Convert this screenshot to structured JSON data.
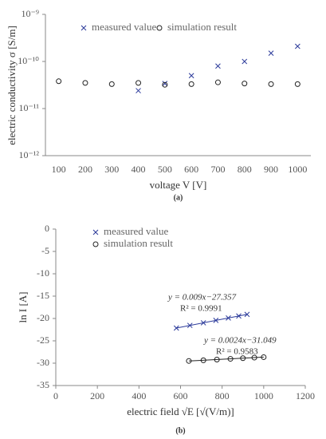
{
  "chart_data": [
    {
      "type": "scatter",
      "subtitle": "(a)",
      "x_label": "voltage V [V]",
      "y_label": "electric conductivity σ [S/m]",
      "log_y": true,
      "grid": false,
      "legend": "top",
      "categories": [
        "100",
        "200",
        "300",
        "400",
        "500",
        "600",
        "700",
        "800",
        "900",
        "1000"
      ],
      "ylim": [
        1e-12,
        1e-09
      ],
      "yticks": [
        {
          "value": 1e-12,
          "label": "10⁻¹²"
        },
        {
          "value": 1e-11,
          "label": "10⁻¹¹"
        },
        {
          "value": 1e-10,
          "label": "10⁻¹⁰"
        },
        {
          "value": 1e-09,
          "label": "10⁻⁹"
        }
      ],
      "series": [
        {
          "name": "measured value",
          "color": "#2b3a9a",
          "marker": "x",
          "values": [
            null,
            null,
            null,
            2.4e-11,
            3.4e-11,
            5e-11,
            8e-11,
            1e-10,
            1.5e-10,
            2.1e-10
          ]
        },
        {
          "name": "simulation result",
          "color": "#222222",
          "marker": "o",
          "values": [
            3.8e-11,
            3.5e-11,
            3.3e-11,
            3.5e-11,
            3.2e-11,
            3.3e-11,
            3.6e-11,
            3.4e-11,
            3.3e-11,
            3.3e-11
          ]
        }
      ]
    },
    {
      "type": "scatter",
      "subtitle": "(b)",
      "x_label": "electric field √E [√(V/m)]",
      "y_label": "ln I [A]",
      "log_y": false,
      "grid": false,
      "legend": "top-left",
      "xlim": [
        0,
        1200
      ],
      "xticks": [
        0,
        200,
        400,
        600,
        800,
        1000,
        1200
      ],
      "ylim": [
        -35,
        0
      ],
      "yticks": [
        -35,
        -30,
        -25,
        -20,
        -15,
        -10,
        -5,
        0
      ],
      "series": [
        {
          "name": "simulation result",
          "color": "#222222",
          "marker": "o",
          "x": [
            640,
            710,
            775,
            840,
            900,
            955,
            1000
          ],
          "values": [
            -29.5,
            -29.35,
            -29.2,
            -29.03,
            -28.89,
            -28.76,
            -28.65
          ],
          "trendline": {
            "slope": 0.0024,
            "intercept": -31.049,
            "equation": "y = 0.0024x−31.049",
            "r_squared": "R² = 0.9583"
          }
        },
        {
          "name": "measured value",
          "color": "#2b3a9a",
          "marker": "x",
          "x": [
            580,
            645,
            710,
            770,
            830,
            880,
            920
          ],
          "values": [
            -22.14,
            -21.55,
            -20.97,
            -20.43,
            -19.89,
            -19.44,
            -19.08
          ],
          "trendline": {
            "slope": 0.009,
            "intercept": -27.357,
            "equation": "y = 0.009x−27.357",
            "r_squared": "R² = 0.9991"
          }
        }
      ]
    }
  ]
}
